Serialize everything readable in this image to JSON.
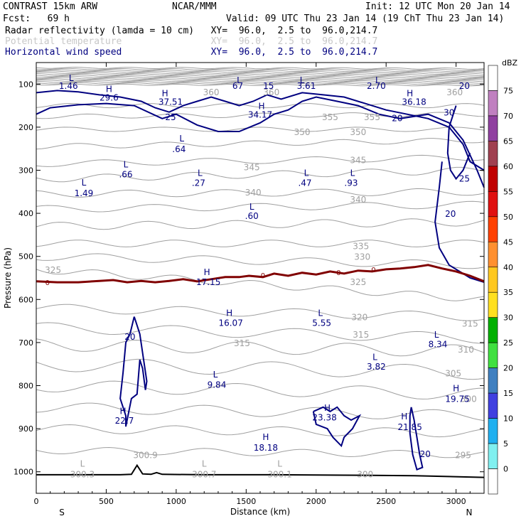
{
  "header": {
    "model": "CONTRAST 15km ARW",
    "org": "NCAR/MMM",
    "init": "Init: 12 UTC Mon 20 Jan 14",
    "fcst": "Fcst:   69 h",
    "valid": "Valid: 09 UTC Thu 23 Jan 14 (19 ChT Thu 23 Jan 14)",
    "line1": "Radar reflectivity (lamda = 10 cm)   XY=  96.0,  2.5 to  96.0,214.7",
    "line2": "Potential temperature                XY=  96.0,  2.5 to  96.0,214.7",
    "line3": "Horizontal wind speed                XY=  96.0,  2.5 to  96.0,214.7"
  },
  "colors": {
    "line1": "#000000",
    "line2": "#c8c8c8",
    "line3": "#000080",
    "theta": "#a0a0a0",
    "wind": "#000080",
    "freezing": "#800000",
    "ground": "#000000"
  },
  "chart_data": {
    "type": "contour-cross-section",
    "xlabel": "Distance (km)",
    "ylabel": "Pressure (hPa)",
    "xlim": [
      0,
      3200
    ],
    "ylim": [
      1050,
      50
    ],
    "x_ticks": [
      "0",
      "500",
      "1000",
      "1500",
      "2000",
      "2500",
      "3000"
    ],
    "x_tick_values": [
      0,
      500,
      1000,
      1500,
      2000,
      2500,
      3000
    ],
    "y_ticks": [
      "100",
      "200",
      "300",
      "400",
      "500",
      "600",
      "700",
      "800",
      "900",
      "1000"
    ],
    "y_tick_values": [
      100,
      200,
      300,
      400,
      500,
      600,
      700,
      800,
      900,
      1000
    ],
    "x_end_labels": [
      "S",
      "N"
    ],
    "colorbar": {
      "unit": "dBZ",
      "levels": [
        "75",
        "70",
        "65",
        "60",
        "55",
        "50",
        "45",
        "40",
        "35",
        "30",
        "25",
        "20",
        "15",
        "10",
        "5",
        "0"
      ],
      "colors": [
        "#ffffff",
        "#c080c0",
        "#9040a0",
        "#a04050",
        "#c00000",
        "#e01010",
        "#ff4000",
        "#ff9030",
        "#ffc820",
        "#ffe020",
        "#00b000",
        "#40e040",
        "#4080c0",
        "#4040e0",
        "#20b0f0",
        "#80f0f0",
        "#ffffff"
      ]
    },
    "theta_labels": [
      {
        "text": "325",
        "x": 120,
        "p": 530
      },
      {
        "text": "350",
        "x": 1900,
        "p": 210
      },
      {
        "text": "350",
        "x": 2300,
        "p": 210
      },
      {
        "text": "355",
        "x": 2100,
        "p": 175
      },
      {
        "text": "355",
        "x": 2400,
        "p": 175
      },
      {
        "text": "345",
        "x": 1540,
        "p": 292
      },
      {
        "text": "345",
        "x": 2300,
        "p": 275
      },
      {
        "text": "340",
        "x": 1550,
        "p": 350
      },
      {
        "text": "340",
        "x": 2300,
        "p": 367
      },
      {
        "text": "335",
        "x": 2320,
        "p": 475
      },
      {
        "text": "330",
        "x": 2330,
        "p": 500
      },
      {
        "text": "325",
        "x": 2300,
        "p": 558
      },
      {
        "text": "320",
        "x": 2310,
        "p": 640
      },
      {
        "text": "315",
        "x": 1470,
        "p": 700
      },
      {
        "text": "315",
        "x": 2320,
        "p": 680
      },
      {
        "text": "315",
        "x": 3100,
        "p": 655
      },
      {
        "text": "310",
        "x": 3070,
        "p": 715
      },
      {
        "text": "305",
        "x": 2980,
        "p": 770
      },
      {
        "text": "300",
        "x": 3090,
        "p": 830
      },
      {
        "text": "295",
        "x": 3050,
        "p": 960
      },
      {
        "text": "300",
        "x": 2350,
        "p": 1005
      },
      {
        "text": "300.9",
        "x": 780,
        "p": 960
      },
      {
        "text": "L",
        "x": 330,
        "p": 980
      },
      {
        "text": "300.3",
        "x": 330,
        "p": 1005
      },
      {
        "text": "L",
        "x": 1200,
        "p": 980
      },
      {
        "text": "300.7",
        "x": 1200,
        "p": 1005
      },
      {
        "text": "L",
        "x": 1740,
        "p": 980
      },
      {
        "text": "300.1",
        "x": 1740,
        "p": 1005
      },
      {
        "text": "360",
        "x": 1250,
        "p": 118
      },
      {
        "text": "360",
        "x": 1680,
        "p": 118
      },
      {
        "text": "360",
        "x": 2990,
        "p": 118
      }
    ],
    "wind_labels": [
      {
        "text": "L",
        "x": 250,
        "p": 85
      },
      {
        "text": "1.46",
        "x": 230,
        "p": 103
      },
      {
        "text": "L",
        "x": 1450,
        "p": 90
      },
      {
        "text": "67",
        "x": 1440,
        "p": 103
      },
      {
        "text": "15",
        "x": 1660,
        "p": 103
      },
      {
        "text": "L",
        "x": 1900,
        "p": 90
      },
      {
        "text": "3.61",
        "x": 1930,
        "p": 103
      },
      {
        "text": "L",
        "x": 2440,
        "p": 90
      },
      {
        "text": "2.70",
        "x": 2430,
        "p": 103
      },
      {
        "text": "H",
        "x": 520,
        "p": 110
      },
      {
        "text": "29.6",
        "x": 520,
        "p": 130
      },
      {
        "text": "H",
        "x": 920,
        "p": 120
      },
      {
        "text": "37.51",
        "x": 960,
        "p": 140
      },
      {
        "text": "H",
        "x": 1610,
        "p": 150
      },
      {
        "text": "34.17",
        "x": 1600,
        "p": 170
      },
      {
        "text": "H",
        "x": 2670,
        "p": 120
      },
      {
        "text": "36.18",
        "x": 2700,
        "p": 140
      },
      {
        "text": "25",
        "x": 960,
        "p": 175
      },
      {
        "text": "20",
        "x": 2580,
        "p": 178
      },
      {
        "text": "30",
        "x": 2950,
        "p": 165
      },
      {
        "text": "20",
        "x": 3060,
        "p": 103
      },
      {
        "text": "L",
        "x": 1040,
        "p": 225
      },
      {
        "text": ".64",
        "x": 1020,
        "p": 250
      },
      {
        "text": "L",
        "x": 640,
        "p": 285
      },
      {
        "text": ".66",
        "x": 640,
        "p": 308
      },
      {
        "text": "L",
        "x": 1170,
        "p": 305
      },
      {
        "text": ".27",
        "x": 1160,
        "p": 328
      },
      {
        "text": "L",
        "x": 1930,
        "p": 305
      },
      {
        "text": ".47",
        "x": 1920,
        "p": 328
      },
      {
        "text": "L",
        "x": 2260,
        "p": 305
      },
      {
        "text": ".93",
        "x": 2250,
        "p": 328
      },
      {
        "text": "L",
        "x": 340,
        "p": 327
      },
      {
        "text": "1.49",
        "x": 340,
        "p": 352
      },
      {
        "text": "L",
        "x": 1540,
        "p": 383
      },
      {
        "text": ".60",
        "x": 1540,
        "p": 405
      },
      {
        "text": "25",
        "x": 3060,
        "p": 318
      },
      {
        "text": "20",
        "x": 2960,
        "p": 400
      },
      {
        "text": "H",
        "x": 1220,
        "p": 535
      },
      {
        "text": "17.15",
        "x": 1230,
        "p": 558
      },
      {
        "text": "H",
        "x": 1380,
        "p": 630
      },
      {
        "text": "16.07",
        "x": 1390,
        "p": 653
      },
      {
        "text": "L",
        "x": 2030,
        "p": 630
      },
      {
        "text": "5.55",
        "x": 2040,
        "p": 653
      },
      {
        "text": "20",
        "x": 670,
        "p": 685
      },
      {
        "text": "L",
        "x": 2860,
        "p": 680
      },
      {
        "text": "8.34",
        "x": 2870,
        "p": 703
      },
      {
        "text": "L",
        "x": 2420,
        "p": 732
      },
      {
        "text": "3.82",
        "x": 2430,
        "p": 755
      },
      {
        "text": "L",
        "x": 1280,
        "p": 773
      },
      {
        "text": "9.84",
        "x": 1290,
        "p": 797
      },
      {
        "text": "H",
        "x": 3000,
        "p": 805
      },
      {
        "text": "19.75",
        "x": 3010,
        "p": 830
      },
      {
        "text": "H",
        "x": 620,
        "p": 858
      },
      {
        "text": "22.7",
        "x": 630,
        "p": 880
      },
      {
        "text": "H",
        "x": 2080,
        "p": 850
      },
      {
        "text": "23.38",
        "x": 2060,
        "p": 873
      },
      {
        "text": "H",
        "x": 2630,
        "p": 870
      },
      {
        "text": "21.85",
        "x": 2670,
        "p": 895
      },
      {
        "text": "H",
        "x": 1640,
        "p": 918
      },
      {
        "text": "18.18",
        "x": 1640,
        "p": 943
      },
      {
        "text": "20",
        "x": 2780,
        "p": 958
      }
    ],
    "freezing_labels": [
      {
        "text": "0",
        "x": 80,
        "p": 560
      },
      {
        "text": "0",
        "x": 1620,
        "p": 543
      },
      {
        "text": "0",
        "x": 2160,
        "p": 537
      },
      {
        "text": "0",
        "x": 2410,
        "p": 530
      }
    ],
    "freezing_level": [
      [
        0,
        558
      ],
      [
        150,
        560
      ],
      [
        300,
        560
      ],
      [
        450,
        557
      ],
      [
        550,
        555
      ],
      [
        650,
        560
      ],
      [
        750,
        557
      ],
      [
        850,
        560
      ],
      [
        950,
        557
      ],
      [
        1050,
        553
      ],
      [
        1150,
        558
      ],
      [
        1250,
        553
      ],
      [
        1350,
        548
      ],
      [
        1450,
        548
      ],
      [
        1520,
        545
      ],
      [
        1620,
        548
      ],
      [
        1700,
        540
      ],
      [
        1800,
        545
      ],
      [
        1900,
        538
      ],
      [
        2000,
        542
      ],
      [
        2100,
        535
      ],
      [
        2200,
        540
      ],
      [
        2300,
        533
      ],
      [
        2400,
        535
      ],
      [
        2500,
        530
      ],
      [
        2600,
        528
      ],
      [
        2700,
        525
      ],
      [
        2800,
        520
      ],
      [
        2900,
        528
      ],
      [
        3000,
        535
      ],
      [
        3100,
        545
      ],
      [
        3200,
        558
      ]
    ],
    "ground": [
      [
        0,
        1007
      ],
      [
        300,
        1007
      ],
      [
        600,
        1007
      ],
      [
        680,
        1006
      ],
      [
        720,
        985
      ],
      [
        760,
        1005
      ],
      [
        820,
        1006
      ],
      [
        860,
        1002
      ],
      [
        900,
        1006
      ],
      [
        1200,
        1007
      ],
      [
        1700,
        1007
      ],
      [
        2200,
        1008
      ],
      [
        2700,
        1009
      ],
      [
        3200,
        1013
      ]
    ]
  }
}
